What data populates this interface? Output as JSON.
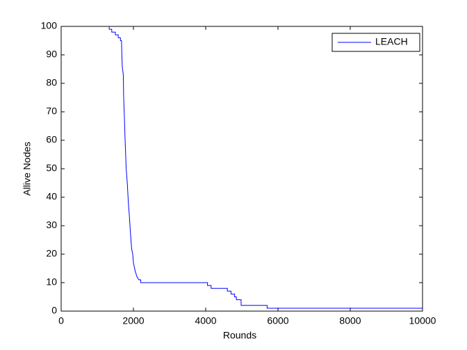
{
  "chart_data": {
    "type": "line",
    "xlabel": "Rounds",
    "ylabel": "Allive Nodes",
    "series": [
      {
        "name": "LEACH",
        "color": "#0000ff",
        "x": [
          1330,
          1330,
          1400,
          1400,
          1500,
          1500,
          1580,
          1580,
          1640,
          1640,
          1670,
          1680,
          1690,
          1720,
          1730,
          1750,
          1770,
          1800,
          1830,
          1860,
          1890,
          1920,
          1950,
          1980,
          2000,
          2050,
          2100,
          2150,
          2200,
          2200,
          4050,
          4050,
          4150,
          4150,
          4600,
          4600,
          4700,
          4700,
          4800,
          4800,
          4850,
          4850,
          4980,
          4980,
          5700,
          5700,
          10000
        ],
        "values": [
          100,
          99,
          99,
          98,
          98,
          97,
          97,
          96,
          96,
          95,
          95,
          90,
          86,
          83,
          75,
          68,
          60,
          50,
          45,
          38,
          33,
          27,
          22,
          20,
          17,
          14,
          12,
          11,
          11,
          10,
          10,
          9,
          9,
          8,
          8,
          7,
          7,
          6,
          6,
          5,
          5,
          4,
          4,
          2,
          2,
          1,
          1
        ]
      }
    ],
    "xlim": [
      0,
      10000
    ],
    "xticks": [
      0,
      2000,
      4000,
      6000,
      8000,
      10000
    ],
    "ylim": [
      0,
      100
    ],
    "yticks": [
      0,
      10,
      20,
      30,
      40,
      50,
      60,
      70,
      80,
      90,
      100
    ],
    "legend": "northeast"
  }
}
